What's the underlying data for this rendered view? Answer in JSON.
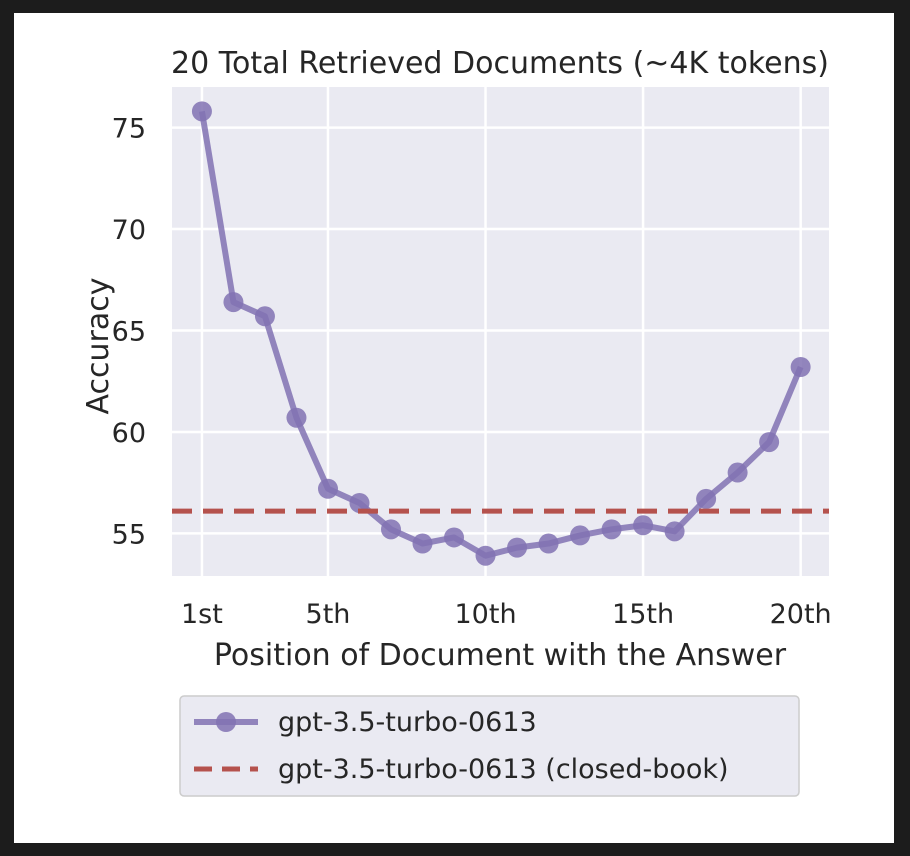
{
  "chart_data": {
    "type": "line",
    "title": "20 Total Retrieved Documents (~4K tokens)",
    "xlabel": "Position of Document with the Answer",
    "ylabel": "Accuracy",
    "x": [
      1,
      2,
      3,
      4,
      5,
      6,
      7,
      8,
      9,
      10,
      11,
      12,
      13,
      14,
      15,
      16,
      17,
      18,
      19,
      20
    ],
    "xticks": [
      1,
      5,
      10,
      15,
      20
    ],
    "xtick_labels": [
      "1st",
      "5th",
      "10th",
      "15th",
      "20th"
    ],
    "yticks": [
      55,
      60,
      65,
      70,
      75
    ],
    "ytick_labels": [
      "55",
      "60",
      "65",
      "70",
      "75"
    ],
    "xlim": [
      0.05,
      20.9
    ],
    "ylim": [
      52.9,
      77.0
    ],
    "grid": true,
    "legend_position": "below",
    "series": [
      {
        "name": "gpt-3.5-turbo-0613",
        "style": "line-marker",
        "color": "#8172b3",
        "values": [
          75.8,
          66.4,
          65.7,
          60.7,
          57.2,
          56.5,
          55.2,
          54.5,
          54.8,
          53.9,
          54.3,
          54.5,
          54.9,
          55.2,
          55.4,
          55.1,
          56.7,
          58.0,
          59.5,
          63.2
        ]
      },
      {
        "name": "gpt-3.5-turbo-0613 (closed-book)",
        "style": "dashed",
        "color": "#b5524d",
        "constant": 56.1
      }
    ],
    "plot_background": "#eaeaf2"
  }
}
